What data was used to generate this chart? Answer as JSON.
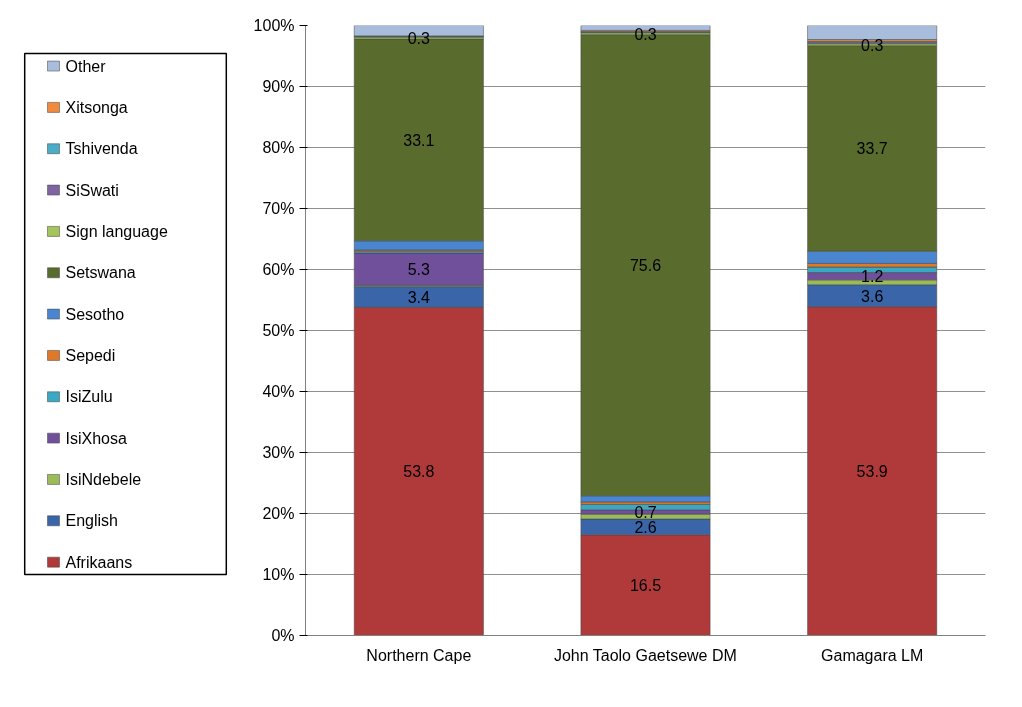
{
  "chart_data": {
    "type": "bar",
    "stacked": true,
    "categories": [
      "Northern Cape",
      "John Taolo Gaetsewe DM",
      "Gamagara LM"
    ],
    "ylim": [
      0,
      100
    ],
    "yticks": [
      {
        "value": 0,
        "label": "0%"
      },
      {
        "value": 10,
        "label": "10%"
      },
      {
        "value": 20,
        "label": "20%"
      },
      {
        "value": 30,
        "label": "30%"
      },
      {
        "value": 40,
        "label": "40%"
      },
      {
        "value": 50,
        "label": "50%"
      },
      {
        "value": 60,
        "label": "60%"
      },
      {
        "value": 70,
        "label": "70%"
      },
      {
        "value": 80,
        "label": "80%"
      },
      {
        "value": 90,
        "label": "90%"
      },
      {
        "value": 100,
        "label": "100%"
      }
    ],
    "grid": "y",
    "legend": "left",
    "series": [
      {
        "name": "Afrikaans",
        "color": "#b03a3a",
        "values": [
          53.8,
          16.5,
          53.9
        ],
        "value_labels": [
          "53.8",
          "16.5",
          "53.9"
        ]
      },
      {
        "name": "English",
        "color": "#3a65a8",
        "values": [
          3.4,
          2.6,
          3.6
        ],
        "value_labels": [
          "3.4",
          "2.6",
          "3.6"
        ]
      },
      {
        "name": "IsiNdebele",
        "color": "#9bbb59",
        "values": [
          0.2,
          0.8,
          0.8
        ]
      },
      {
        "name": "IsiXhosa",
        "color": "#70509a",
        "values": [
          5.3,
          0.7,
          1.2
        ],
        "value_labels": [
          "5.3",
          "0.7",
          "1.2"
        ]
      },
      {
        "name": "IsiZulu",
        "color": "#3aa8c0",
        "values": [
          0.3,
          0.9,
          0.9
        ]
      },
      {
        "name": "Sepedi",
        "color": "#e0782a",
        "values": [
          0.2,
          0.4,
          0.6
        ]
      },
      {
        "name": "Sesotho",
        "color": "#4a86d0",
        "values": [
          1.5,
          1.0,
          2.0
        ]
      },
      {
        "name": "Setswana",
        "color": "#5a6b2e",
        "values": [
          33.1,
          75.6,
          33.7
        ],
        "value_labels": [
          "33.1",
          "75.6",
          "33.7"
        ]
      },
      {
        "name": "Sign language",
        "color": "#a4c45c",
        "values": [
          0.3,
          0.3,
          0.3
        ],
        "value_labels": [
          "0.3",
          "0.3",
          "0.3"
        ]
      },
      {
        "name": "SiSwati",
        "color": "#8064a2",
        "values": [
          0.1,
          0.1,
          0.2
        ]
      },
      {
        "name": "Tshivenda",
        "color": "#4bacc6",
        "values": [
          0.1,
          0.1,
          0.2
        ]
      },
      {
        "name": "Xitsonga",
        "color": "#f08a3c",
        "values": [
          null,
          0.2,
          0.3
        ]
      },
      {
        "name": "Other",
        "color": "#a8bcdc",
        "values": [
          1.7,
          0.8,
          2.3
        ]
      }
    ]
  }
}
